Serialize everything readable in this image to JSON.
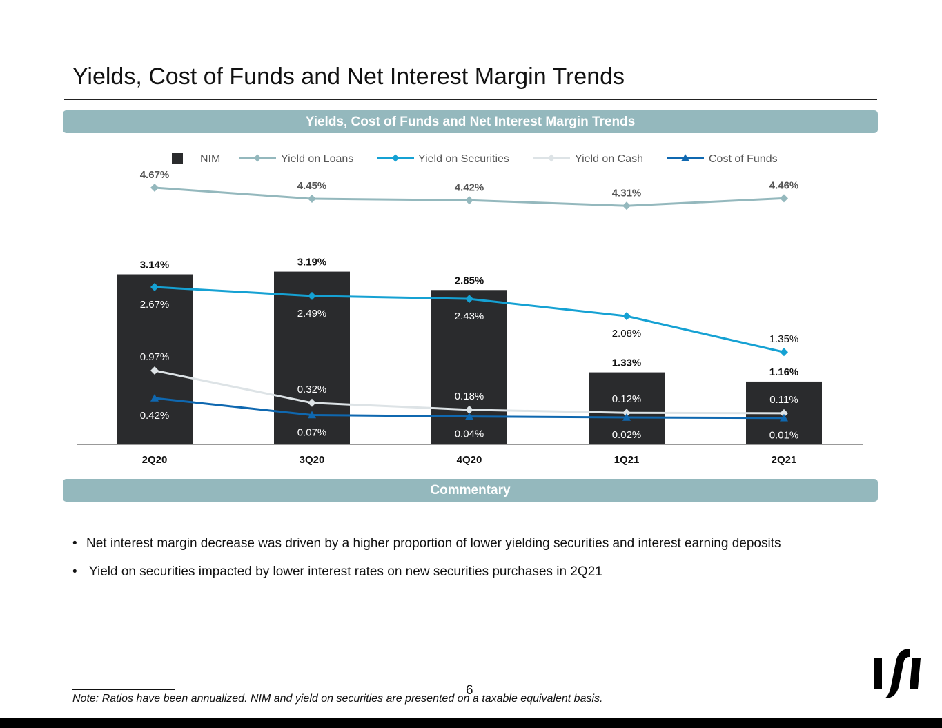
{
  "page": {
    "title": "Yields, Cost of Funds and Net Interest Margin Trends",
    "chart_header": "Yields, Cost of Funds and Net Interest Margin Trends",
    "commentary_header": "Commentary",
    "bullets": [
      "Net interest margin decrease was driven by a higher proportion of lower yielding securities and interest earning deposits",
      "Yield on securities impacted by lower interest rates on new securities purchases in 2Q21"
    ],
    "bullet_glyph": "•",
    "note": "Note: Ratios have been annualized. NIM and yield on securities are presented on a taxable equivalent basis.",
    "page_number": "6",
    "logo_icon": "brand-logo-icon"
  },
  "chart_data": {
    "type": "bar",
    "title": "Yields, Cost of Funds and Net Interest Margin Trends",
    "categories": [
      "2Q20",
      "3Q20",
      "4Q20",
      "1Q21",
      "2Q21"
    ],
    "unit": "%",
    "bar_series": {
      "name": "NIM",
      "color": "#2a2b2d",
      "values": [
        3.14,
        3.19,
        2.85,
        1.33,
        1.16
      ],
      "labels": [
        "3.14%",
        "3.19%",
        "2.85%",
        "1.33%",
        "1.16%"
      ]
    },
    "line_series": [
      {
        "name": "Yield on Loans",
        "color": "#94b8bd",
        "marker": "diamond",
        "values": [
          4.67,
          4.45,
          4.42,
          4.31,
          4.46
        ],
        "labels": [
          "4.67%",
          "4.45%",
          "4.42%",
          "4.31%",
          "4.46%"
        ]
      },
      {
        "name": "Yield on Securities",
        "color": "#15a1d3",
        "marker": "diamond",
        "values": [
          2.67,
          2.49,
          2.43,
          2.08,
          1.35
        ],
        "labels": [
          "2.67%",
          "2.49%",
          "2.43%",
          "2.08%",
          "1.35%"
        ]
      },
      {
        "name": "Yield on Cash",
        "color": "#dde3e6",
        "marker": "diamond",
        "values": [
          0.97,
          0.32,
          0.18,
          0.12,
          0.11
        ],
        "labels": [
          "0.97%",
          "0.32%",
          "0.18%",
          "0.12%",
          "0.11%"
        ]
      },
      {
        "name": "Cost of Funds",
        "color": "#0f68b0",
        "marker": "triangle",
        "values": [
          0.42,
          0.07,
          0.04,
          0.02,
          0.01
        ],
        "labels": [
          "0.42%",
          "0.07%",
          "0.04%",
          "0.02%",
          "0.01%"
        ]
      }
    ],
    "legend": {
      "position": "top",
      "entries": [
        "NIM",
        "Yield on Loans",
        "Yield on Securities",
        "Yield on Cash",
        "Cost of Funds"
      ]
    },
    "ylim": [
      0,
      4.8
    ],
    "grid": false,
    "xlabel": "",
    "ylabel": ""
  }
}
